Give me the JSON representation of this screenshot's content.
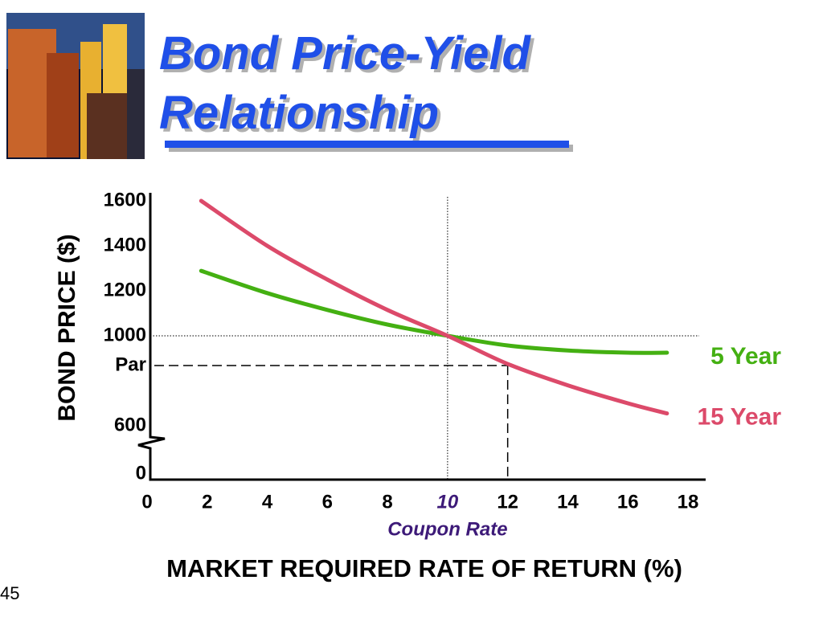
{
  "title": "Bond Price-Yield Relationship",
  "page_number": "45",
  "chart_data": {
    "type": "line",
    "x_label": "MARKET REQUIRED RATE OF RETURN (%)",
    "y_label": "BOND PRICE ($)",
    "x": [
      1.8,
      4,
      6,
      8,
      10,
      12,
      14,
      16,
      17.3
    ],
    "series": [
      {
        "name": "5 Year",
        "color": "#44b012",
        "values": [
          1289,
          1190,
          1115,
          1050,
          1000,
          957,
          935,
          925,
          925
        ]
      },
      {
        "name": "15 Year",
        "color": "#dc4a6a",
        "values": [
          1600,
          1400,
          1250,
          1115,
          1000,
          875,
          780,
          700,
          655
        ]
      }
    ],
    "xlim": [
      0,
      18
    ],
    "xticks": [
      0,
      2,
      4,
      6,
      8,
      10,
      12,
      14,
      16,
      18
    ],
    "ylim": [
      0,
      1600
    ],
    "yticks": [
      0,
      600,
      {
        "value": 868,
        "label": "Par"
      },
      1000,
      1200,
      1400,
      1600
    ],
    "coupon_rate": 10,
    "coupon_label": "Coupon Rate",
    "par_rate": 12
  }
}
